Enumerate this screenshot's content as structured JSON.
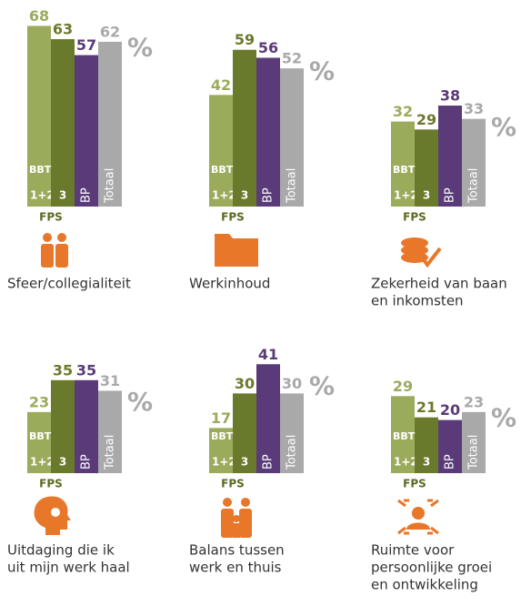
{
  "chart_data": [
    {
      "type": "bar",
      "title": [
        "Sfeer/collegialiteit"
      ],
      "categories": [
        "1+2",
        "3",
        "BP",
        "Totaal"
      ],
      "subgroup": "BBT",
      "group": "FPS",
      "unit": "%",
      "values": [
        68,
        63,
        57,
        62
      ],
      "colors": [
        "#9bab5c",
        "#6a7a2c",
        "#5a3a78",
        "#a9a9a9"
      ]
    },
    {
      "type": "bar",
      "title": [
        "Werkinhoud"
      ],
      "categories": [
        "1+2",
        "3",
        "BP",
        "Totaal"
      ],
      "subgroup": "BBT",
      "group": "FPS",
      "unit": "%",
      "values": [
        42,
        59,
        56,
        52
      ],
      "colors": [
        "#9bab5c",
        "#6a7a2c",
        "#5a3a78",
        "#a9a9a9"
      ]
    },
    {
      "type": "bar",
      "title": [
        "Zekerheid van baan",
        "en inkomsten"
      ],
      "categories": [
        "1+2",
        "3",
        "BP",
        "Totaal"
      ],
      "subgroup": "BBT",
      "group": "FPS",
      "unit": "%",
      "values": [
        32,
        29,
        38,
        33
      ],
      "colors": [
        "#9bab5c",
        "#6a7a2c",
        "#5a3a78",
        "#a9a9a9"
      ]
    },
    {
      "type": "bar",
      "title": [
        "Uitdaging die ik",
        "uit mijn werk haal"
      ],
      "categories": [
        "1+2",
        "3",
        "BP",
        "Totaal"
      ],
      "subgroup": "BBT",
      "group": "FPS",
      "unit": "%",
      "values": [
        23,
        35,
        35,
        31
      ],
      "colors": [
        "#9bab5c",
        "#6a7a2c",
        "#5a3a78",
        "#a9a9a9"
      ]
    },
    {
      "type": "bar",
      "title": [
        "Balans tussen",
        "werk en thuis"
      ],
      "categories": [
        "1+2",
        "3",
        "BP",
        "Totaal"
      ],
      "subgroup": "BBT",
      "group": "FPS",
      "unit": "%",
      "values": [
        17,
        30,
        41,
        30
      ],
      "colors": [
        "#9bab5c",
        "#6a7a2c",
        "#5a3a78",
        "#a9a9a9"
      ]
    },
    {
      "type": "bar",
      "title": [
        "Ruimte voor",
        "persoonlijke groei",
        "en ontwikkeling"
      ],
      "categories": [
        "1+2",
        "3",
        "BP",
        "Totaal"
      ],
      "subgroup": "BBT",
      "group": "FPS",
      "unit": "%",
      "values": [
        29,
        21,
        20,
        23
      ],
      "colors": [
        "#9bab5c",
        "#6a7a2c",
        "#5a3a78",
        "#a9a9a9"
      ]
    }
  ]
}
